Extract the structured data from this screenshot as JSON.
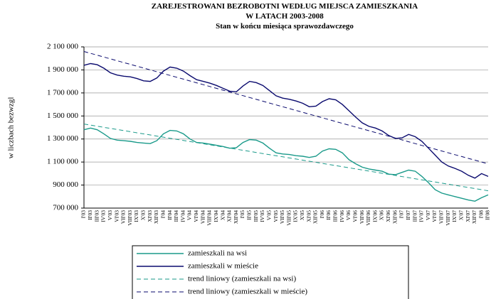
{
  "chart_data": {
    "type": "line",
    "title": [
      "ZAREJESTROWANI BEZROBOTNI WEDŁUG MIEJSCA ZAMIESZKANIA",
      "W LATACH 2003-2008"
    ],
    "subtitle": "Stan w końcu miesiąca sprawozdawczego",
    "y_label": "w liczbach bezwzgl",
    "categories": [
      "I'03",
      "II'03",
      "III'03",
      "IV'03",
      "V'03",
      "VI'03",
      "VII'03",
      "VIII'03",
      "IX'03",
      "X'03",
      "XI'03",
      "XII'03",
      "I'04",
      "II'04",
      "III'04",
      "IV'04",
      "V'04",
      "VI'04",
      "VII'04",
      "VIII'04",
      "IX'04",
      "X'04",
      "XI'04",
      "XII'04",
      "I'05",
      "II'05",
      "III'05",
      "IV'05",
      "V'05",
      "VI'05",
      "VII'05",
      "VIII'05",
      "IX'05",
      "X'05",
      "XI'05",
      "XII'05",
      "I'06",
      "II'06",
      "III'06",
      "IV'06",
      "V'06",
      "VI'06",
      "VII'06",
      "VIII'06",
      "IX'06",
      "X'06",
      "XI'06",
      "XII'06",
      "I'07",
      "II'07",
      "III'07",
      "IV'07",
      "V'07",
      "VI'07",
      "VII'07",
      "VIII'07",
      "IX'07",
      "X'07",
      "XI'07",
      "XII'07",
      "I'08",
      "II'08"
    ],
    "series": [
      {
        "name": "zamieszkali na wsi",
        "color": "#1a9a8a",
        "dash": false,
        "values": [
          1380000,
          1395000,
          1380000,
          1345000,
          1305000,
          1290000,
          1285000,
          1280000,
          1270000,
          1265000,
          1260000,
          1285000,
          1345000,
          1375000,
          1370000,
          1345000,
          1300000,
          1270000,
          1265000,
          1255000,
          1245000,
          1235000,
          1220000,
          1225000,
          1270000,
          1295000,
          1290000,
          1265000,
          1220000,
          1180000,
          1170000,
          1165000,
          1155000,
          1150000,
          1140000,
          1150000,
          1195000,
          1215000,
          1210000,
          1180000,
          1120000,
          1085000,
          1055000,
          1040000,
          1030000,
          1020000,
          995000,
          990000,
          1010000,
          1030000,
          1020000,
          975000,
          920000,
          860000,
          830000,
          815000,
          800000,
          785000,
          770000,
          760000,
          790000,
          815000
        ]
      },
      {
        "name": "zamieszkali w mieście",
        "color": "#0a0a6e",
        "dash": false,
        "values": [
          1940000,
          1955000,
          1945000,
          1915000,
          1875000,
          1855000,
          1845000,
          1840000,
          1825000,
          1805000,
          1800000,
          1830000,
          1890000,
          1925000,
          1915000,
          1890000,
          1850000,
          1815000,
          1800000,
          1785000,
          1765000,
          1740000,
          1715000,
          1710000,
          1760000,
          1800000,
          1790000,
          1765000,
          1720000,
          1675000,
          1655000,
          1645000,
          1630000,
          1610000,
          1580000,
          1585000,
          1625000,
          1650000,
          1640000,
          1600000,
          1545000,
          1490000,
          1440000,
          1410000,
          1395000,
          1370000,
          1330000,
          1305000,
          1310000,
          1340000,
          1320000,
          1280000,
          1220000,
          1160000,
          1100000,
          1065000,
          1045000,
          1020000,
          985000,
          960000,
          1000000,
          975000
        ]
      },
      {
        "name": "trend liniowy (zamieszkali na wsi)",
        "color": "#1a9a8a",
        "dash": true,
        "values": [
          1430000,
          1420500,
          1411000,
          1401500,
          1392000,
          1382500,
          1373000,
          1363500,
          1354000,
          1344500,
          1335000,
          1325500,
          1316000,
          1306500,
          1297000,
          1287500,
          1278000,
          1268500,
          1259000,
          1249500,
          1240000,
          1230500,
          1221000,
          1211500,
          1202000,
          1192500,
          1183000,
          1173500,
          1164000,
          1154500,
          1145000,
          1135500,
          1126000,
          1116500,
          1107000,
          1097500,
          1088000,
          1078500,
          1069000,
          1059500,
          1050000,
          1040500,
          1031000,
          1021500,
          1012000,
          1002500,
          993000,
          983500,
          974000,
          964500,
          955000,
          945500,
          936000,
          926500,
          917000,
          907500,
          898000,
          888500,
          879000,
          869500,
          860000,
          850500
        ]
      },
      {
        "name": "trend liniowy (zamieszkali w mieście)",
        "color": "#0a0a6e",
        "dash": true,
        "values": [
          2060000,
          2044000,
          2028000,
          2012000,
          1996000,
          1980000,
          1964000,
          1948000,
          1932000,
          1916000,
          1900000,
          1884000,
          1868000,
          1852000,
          1836000,
          1820000,
          1804000,
          1788000,
          1772000,
          1756000,
          1740000,
          1724000,
          1708000,
          1692000,
          1676000,
          1660000,
          1644000,
          1628000,
          1612000,
          1596000,
          1580000,
          1564000,
          1548000,
          1532000,
          1516000,
          1500000,
          1484000,
          1468000,
          1452000,
          1436000,
          1420000,
          1404000,
          1388000,
          1372000,
          1356000,
          1340000,
          1324000,
          1308000,
          1292000,
          1276000,
          1260000,
          1244000,
          1228000,
          1212000,
          1196000,
          1180000,
          1164000,
          1148000,
          1132000,
          1116000,
          1100000,
          1084000
        ]
      }
    ],
    "ylim": [
      700000,
      2100000
    ],
    "yticks": [
      {
        "value": 700000,
        "label": "700 000"
      },
      {
        "value": 900000,
        "label": "900 000"
      },
      {
        "value": 1100000,
        "label": "1 100 000"
      },
      {
        "value": 1300000,
        "label": "1 300 000"
      },
      {
        "value": 1500000,
        "label": "1 500 000"
      },
      {
        "value": 1700000,
        "label": "1 700 000"
      },
      {
        "value": 1900000,
        "label": "1 900 000"
      },
      {
        "value": 2100000,
        "label": "2 100 000"
      }
    ],
    "grid": true,
    "legend": "bottom"
  }
}
